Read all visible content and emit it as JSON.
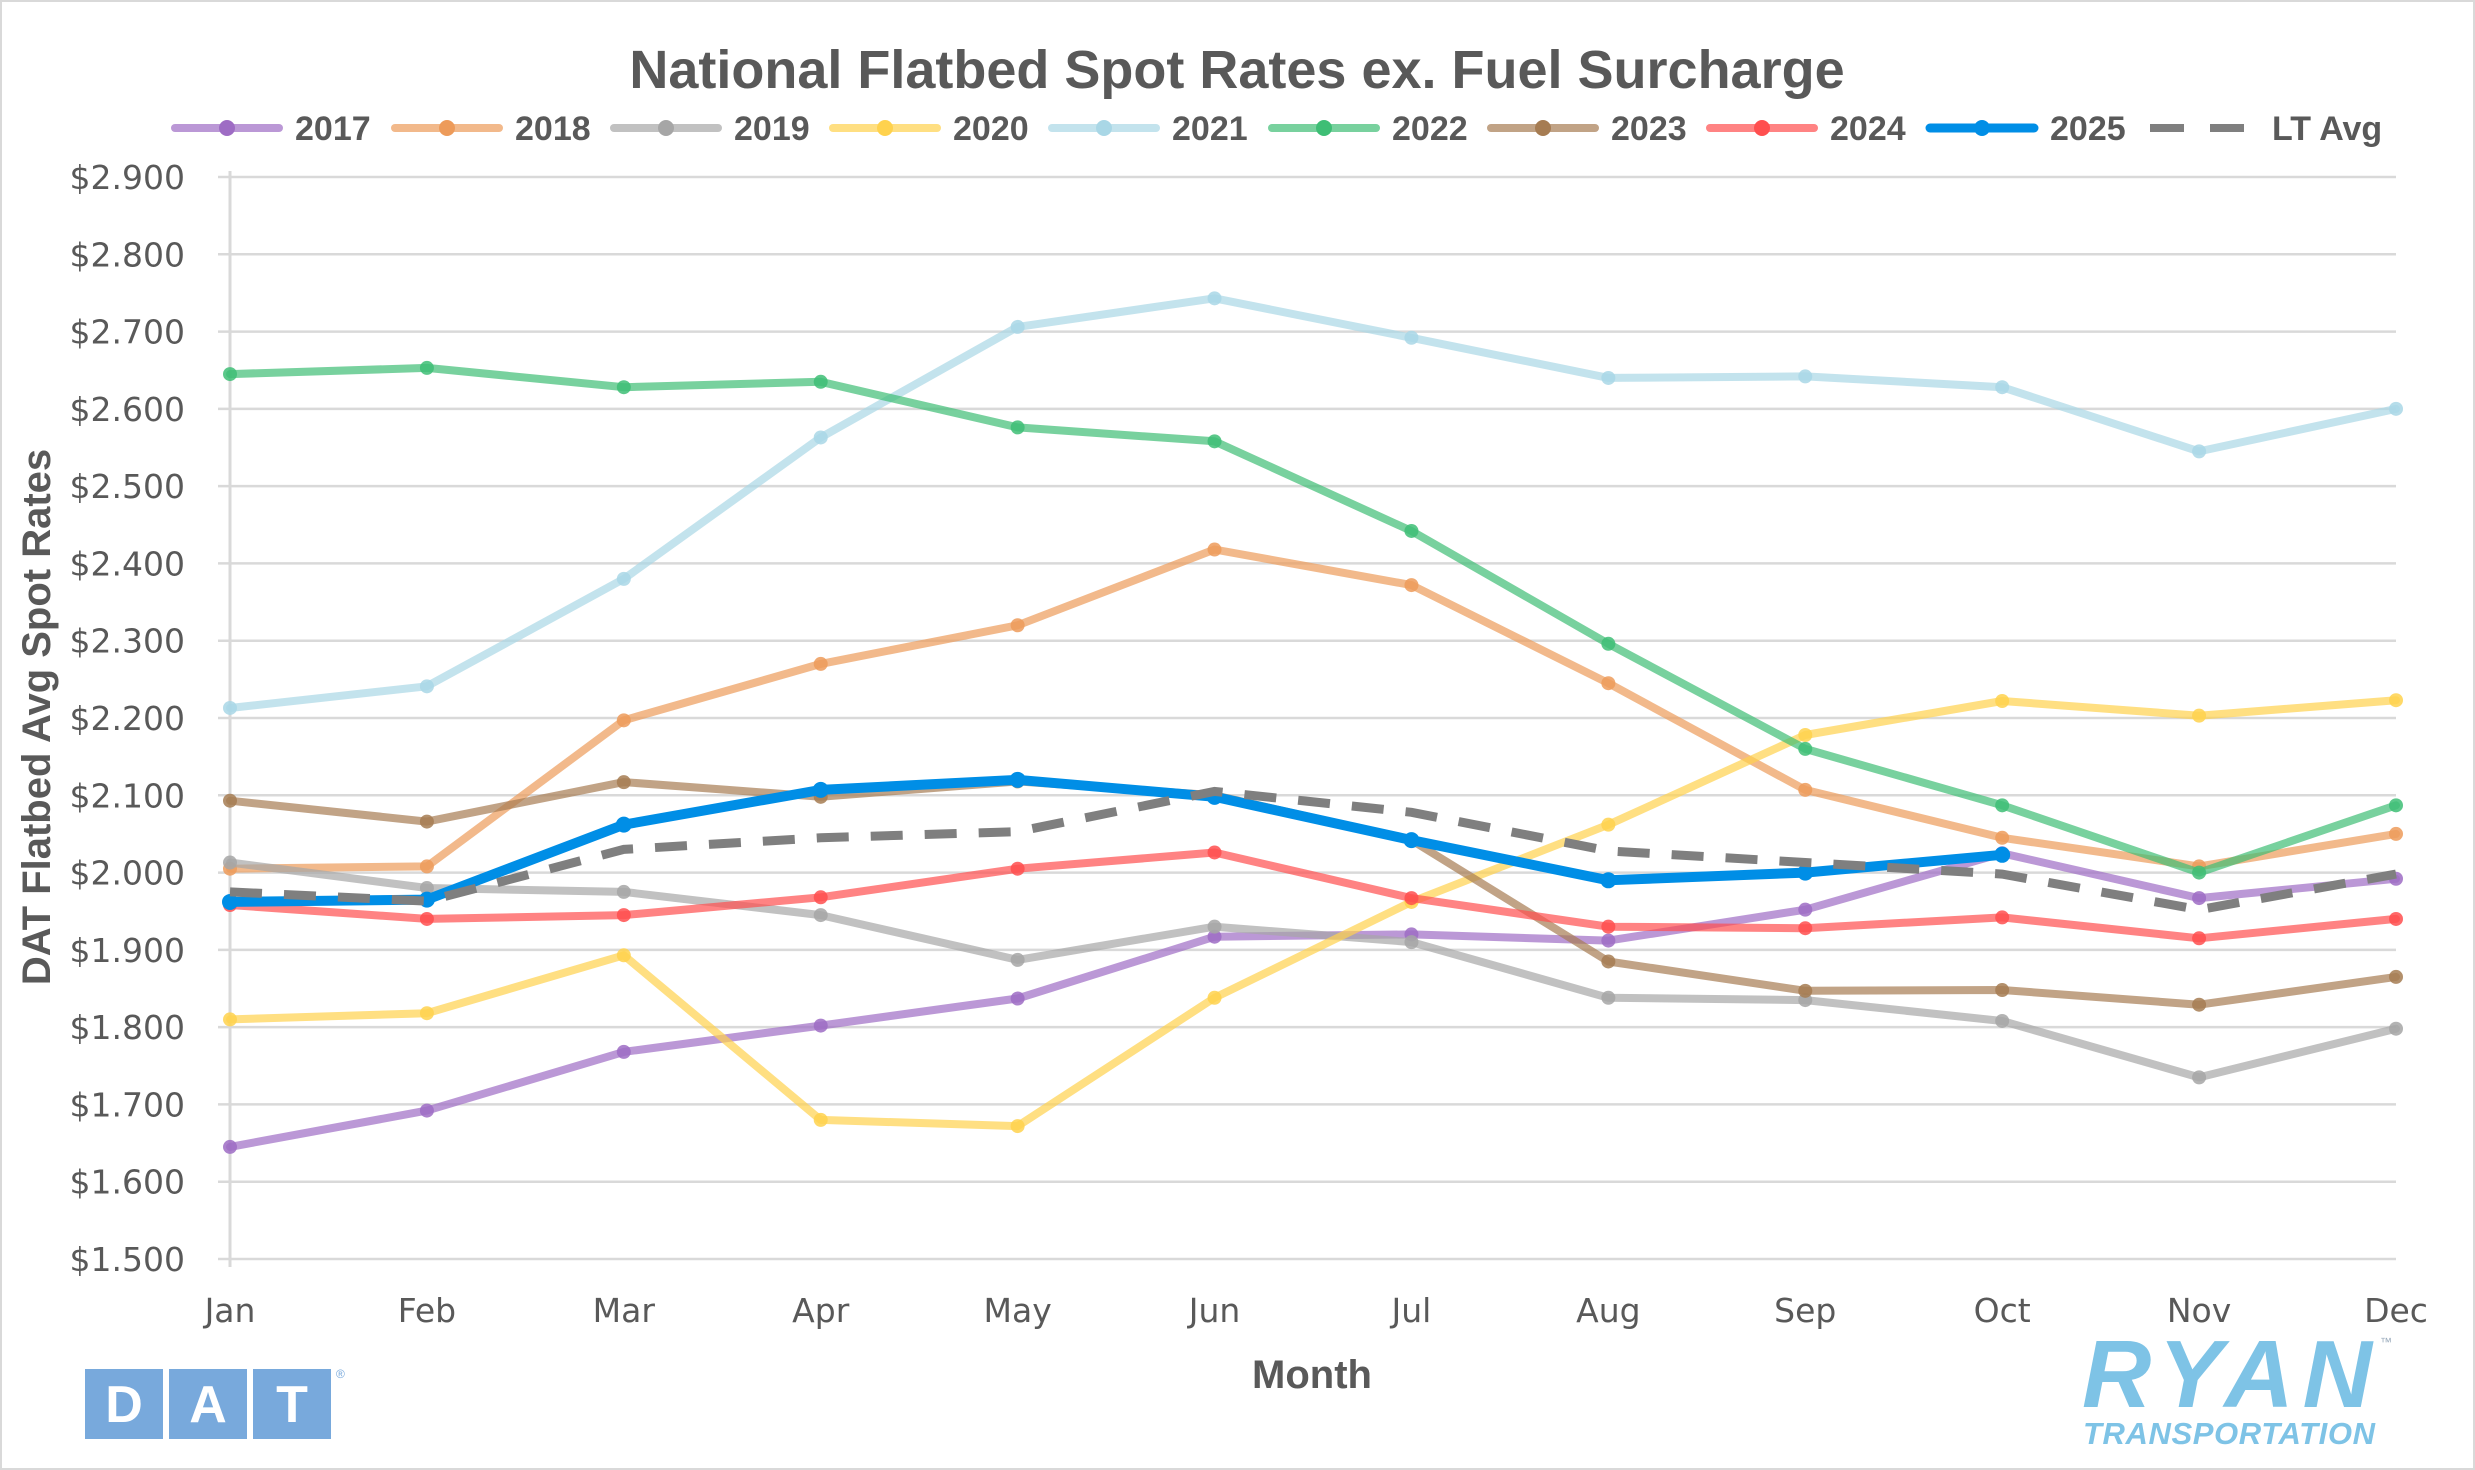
{
  "chart_data": {
    "type": "line",
    "title": "National Flatbed Spot Rates ex. Fuel Surcharge",
    "xlabel": "Month",
    "ylabel": "DAT Flatbed Avg Spot Rates",
    "categories": [
      "Jan",
      "Feb",
      "Mar",
      "Apr",
      "May",
      "Jun",
      "Jul",
      "Aug",
      "Sep",
      "Oct",
      "Nov",
      "Dec"
    ],
    "ylim": [
      1.5,
      2.9
    ],
    "yticks": [
      "$1.500",
      "$1.600",
      "$1.700",
      "$1.800",
      "$1.900",
      "$2.000",
      "$2.100",
      "$2.200",
      "$2.300",
      "$2.400",
      "$2.500",
      "$2.600",
      "$2.700",
      "$2.800",
      "$2.900"
    ],
    "ytick_values": [
      1.5,
      1.6,
      1.7,
      1.8,
      1.9,
      2.0,
      2.1,
      2.2,
      2.3,
      2.4,
      2.5,
      2.6,
      2.7,
      2.8,
      2.9
    ],
    "grid": "horizontal",
    "legend_position": "top",
    "series": [
      {
        "name": "2017",
        "color": "#9E6CC4",
        "style": "solid-marker",
        "values": [
          1.645,
          1.692,
          1.768,
          1.802,
          1.837,
          1.917,
          1.92,
          1.912,
          1.952,
          2.025,
          1.967,
          1.992
        ]
      },
      {
        "name": "2018",
        "color": "#ED9B5A",
        "style": "solid-marker",
        "values": [
          2.005,
          2.008,
          2.197,
          2.27,
          2.32,
          2.418,
          2.372,
          2.245,
          2.107,
          2.045,
          2.008,
          2.05
        ]
      },
      {
        "name": "2019",
        "color": "#A6A6A6",
        "style": "solid-marker",
        "values": [
          2.013,
          1.98,
          1.975,
          1.945,
          1.887,
          1.93,
          1.91,
          1.838,
          1.835,
          1.808,
          1.735,
          1.798
        ]
      },
      {
        "name": "2020",
        "color": "#FFD24D",
        "style": "solid-marker",
        "values": [
          1.81,
          1.818,
          1.893,
          1.68,
          1.672,
          1.838,
          1.962,
          2.062,
          2.178,
          2.222,
          2.203,
          2.223
        ]
      },
      {
        "name": "2021",
        "color": "#A9D7E6",
        "style": "solid-marker",
        "values": [
          2.213,
          2.241,
          2.38,
          2.563,
          2.706,
          2.743,
          2.692,
          2.64,
          2.642,
          2.628,
          2.545,
          2.6
        ]
      },
      {
        "name": "2022",
        "color": "#3EBE75",
        "style": "solid-marker",
        "values": [
          2.645,
          2.653,
          2.628,
          2.635,
          2.576,
          2.558,
          2.442,
          2.296,
          2.16,
          2.087,
          2.0,
          2.087
        ]
      },
      {
        "name": "2023",
        "color": "#A67C52",
        "style": "solid-marker",
        "values": [
          2.093,
          2.066,
          2.117,
          2.098,
          2.118,
          2.1,
          2.042,
          1.885,
          1.847,
          1.848,
          1.829,
          1.865
        ]
      },
      {
        "name": "2024",
        "color": "#FF4F4F",
        "style": "solid-marker",
        "values": [
          1.958,
          1.94,
          1.945,
          1.968,
          2.005,
          2.026,
          1.967,
          1.93,
          1.928,
          1.942,
          1.915,
          1.94
        ]
      },
      {
        "name": "2025",
        "color": "#008EE6",
        "style": "bold-marker",
        "values": [
          1.962,
          1.965,
          2.062,
          2.107,
          2.12,
          2.098,
          2.042,
          1.99,
          2.0,
          2.023,
          null,
          null
        ]
      },
      {
        "name": "LT Avg",
        "color": "#7F7F7F",
        "style": "dashed",
        "values": [
          1.975,
          1.963,
          2.03,
          2.045,
          2.053,
          2.105,
          2.078,
          2.028,
          2.013,
          1.998,
          1.952,
          1.998
        ]
      }
    ]
  },
  "logos": {
    "dat": {
      "letters": [
        "D",
        "A",
        "T"
      ],
      "mark": "®",
      "color": "#78A9DC"
    },
    "ryan": {
      "name": "RYAN",
      "tagline": "TRANSPORTATION",
      "mark": "™",
      "color": "#7EC3E6"
    }
  }
}
